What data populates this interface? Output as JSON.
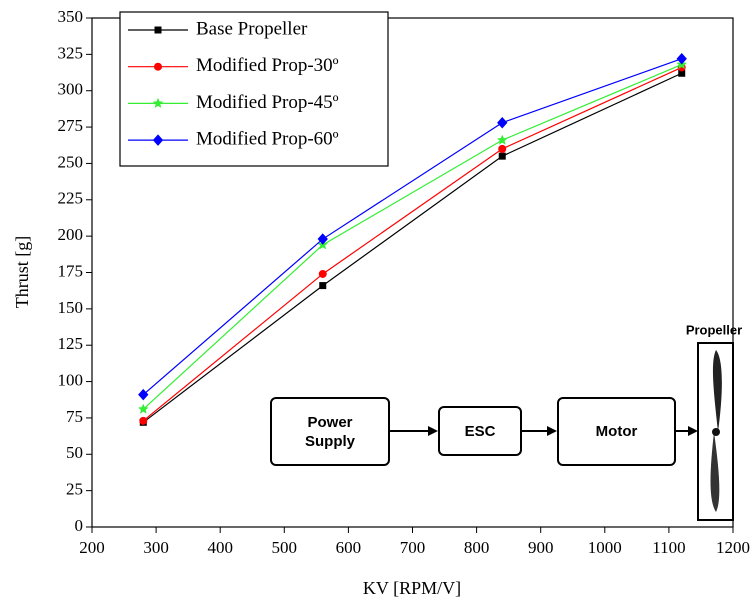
{
  "chart_data": {
    "type": "line",
    "x_label": "KV [RPM/V]",
    "y_label": "Thrust [g]",
    "x": [
      280,
      560,
      840,
      1120
    ],
    "series": [
      {
        "name": "Base Propeller",
        "color": "#000000",
        "marker": "square",
        "values": [
          72,
          166,
          255,
          312
        ]
      },
      {
        "name": "Modified Prop-30º",
        "color": "#ff0000",
        "marker": "circle",
        "values": [
          73,
          174,
          260,
          316
        ]
      },
      {
        "name": "Modified Prop-45º",
        "color": "#33ee33",
        "marker": "star",
        "values": [
          81,
          194,
          266,
          318
        ]
      },
      {
        "name": "Modified Prop-60º",
        "color": "#0000ff",
        "marker": "diamond",
        "values": [
          91,
          198,
          278,
          322
        ]
      }
    ],
    "xlim": [
      200,
      1200
    ],
    "xticks": [
      200,
      300,
      400,
      500,
      600,
      700,
      800,
      900,
      1000,
      1100,
      1200
    ],
    "ylim": [
      0,
      350
    ],
    "yticks": [
      0,
      25,
      50,
      75,
      100,
      125,
      150,
      175,
      200,
      225,
      250,
      275,
      300,
      325,
      350
    ],
    "legend": "upper left",
    "inset": {
      "blocks": [
        "Power Supply",
        "ESC",
        "Motor"
      ],
      "label": "Propeller"
    }
  }
}
